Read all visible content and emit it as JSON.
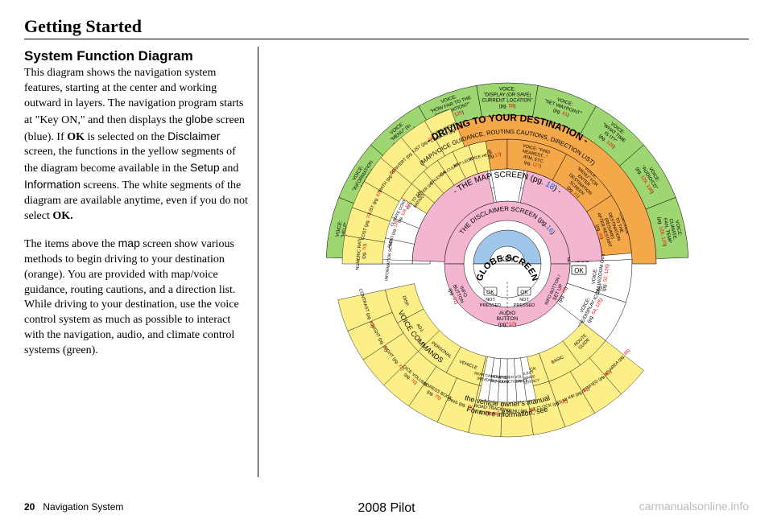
{
  "page": {
    "title": "Getting Started",
    "section_title": "System Function Diagram",
    "footer_page_num": "20",
    "footer_label": "Navigation System",
    "footer_center": "2008  Pilot",
    "footer_right": "carmanualsonline.info"
  },
  "body": {
    "p1_a": "This diagram shows the navigation system features, starting at the center and working outward in layers. The navigation program starts at \"Key ON,\" and then displays the ",
    "p1_globe": "globe",
    "p1_b": " screen (blue). If ",
    "p1_ok": "OK",
    "p1_c": " is selected on the ",
    "p1_disclaimer": "Disclaimer",
    "p1_d": " screen, the functions in the yellow segments of the diagram become available in the ",
    "p1_setup": "Setup",
    "p1_e": " and ",
    "p1_info": "Information",
    "p1_f": " screens. The white segments of the diagram are available anytime, even if you do not select ",
    "p1_ok2": "OK.",
    "p2_a": "The items above the ",
    "p2_map": "map",
    "p2_b": " screen show various methods to begin driving to your destination (orange). You are provided with map/voice guidance, routing cautions, and a direction list. While driving to your destination, use the voice control system as much as possible to interact with the navigation, audio, and climate control systems (green)."
  },
  "diagram": {
    "colors": {
      "green": "#9ed672",
      "orange": "#f5a84a",
      "yellow": "#fcef87",
      "blue": "#9fc5e8",
      "pink": "#f3b5cf",
      "white": "#ffffff",
      "stroke": "#000000",
      "font_green_ring": "#000000"
    },
    "center": {
      "label": "KEY\nON"
    },
    "ring1": {
      "globe": "GLOBE SCREEN",
      "disclaimer": "THE DISCLAIMER SCREEN (pg.16)",
      "map": "- THE MAP SCREEN (pg. 18) -",
      "driving": "- DRIVING TO YOUR DESTINATION -",
      "driving_sub": "(MAP/VOICE GUIDANCE, ROUTING CAUTIONS, DIRECTION LIST)"
    },
    "press_ok": {
      "label": "PRESS",
      "ok": "OK"
    },
    "ok_not_pressed": "OK\nNOT\nPRESSED",
    "info_button": "INFO\nBUTTON\n(pg. 61)",
    "setup_button": "INFO BUTTON /\nSET UP\n(pg. 73)",
    "audio_button": "AUDIO\nBUTTON\n(pg. 10)",
    "voice_commands": "VOICE COMMANDS",
    "manual_note": "For more information, see\nthe vehicle owner's manual",
    "green_outer": [
      "VOICE:\n\"HELP\"\n(pg. 125)",
      "VOICE:\n\"INFORMATION\nSCREEN\"\n(pg. 96)",
      "VOICE:\n\"MENU\" (to\nchange route)\n(pg. 61)",
      "VOICE:\n\"HOW FAR TO THE\nDESTINATION?\"\n(pg. 125)",
      "VOICE:\n\"DISPLAY (OR SAVE)\nCURRENT LOCATION\"\n(pg. 59)",
      "VOICE:\n\"SET WAYPOINT\"\n(pg. 61)",
      "VOICE:\n\"WHAT TIME\nIS IT?\"\n(pg. 126)",
      "VOICE:\n\"AUDIO/CD\"\n(pg. 129, 130)",
      "VOICE:\nCLIMATE,\nFAN, TEMP\n(pg. 128, 129)"
    ],
    "orange_inner": [
      "VOICE:\n\"GO HOME\"\n(pg. 42)",
      "SELECT A\nDESTINATION\nWITH\nJOYSTICK\n(pg. 54)",
      "CALENDAR\nREMINDERS (pg.17)",
      "VOICE: \"FIND\nNEAREST...\"\nATM, ETC.\n(pg. 127)",
      "VOICE:\n\"MENU\" FOR\nENTER\nDESTINATION\nSCREEN\n(pg. 21)",
      "CONTINUE\nTO THE\nDESTINATION\n(RESUME)\nAFTER RESTART\n(pg. 60)"
    ],
    "right_map": [
      "VOICE:\n\"ZOOM IN/ZOOM OUT\"\n(pg. 52, 126)",
      "VOICE:\n\"HIDE/DISPLAY ICONS\"\n(pg. 54, 126)"
    ],
    "yellow_left": [
      "INFORMATION SCREEN (pg. 136)",
      "AUDIO (pg. 129, 130)",
      "CLIMATE CONTROL\n(pg. 128, 129)",
      "NUMERIC RATING\n(pg. 70)",
      "COST (pg. 70)",
      "LIST (pg. 67)",
      "MATH (pg. 69)",
      "CONVERT (pg. 70)",
      "LIST (pg. 69)",
      "NAVI AUDIO\nCLIMATE (pg. 66)",
      "KEY TO ZAGAT\nRATINGS",
      "CALENDAR",
      "CALCULATOR",
      "MAP LEGEND",
      "VOICE HELP",
      "ENTER (pg. 68)"
    ],
    "yellow_right": [
      "ROUTE\nGUIDE",
      "BASIC",
      "CLOCK",
      "COLOR",
      "VEHICLE",
      "PERSONAL",
      "AVOID AREA (pg. 86)",
      "UNVERIFIED (pg. 83)",
      "UNITS MI KM (pg. 91)",
      "ADJUST CLOCK (pg. 92)",
      "MAP MENU (pg. 94)",
      "OFFROAD TRACKING\n(pg. 58, 89)",
      "PINS (pg. 75)",
      "ADDRESS BOOK\n(pg. 75)",
      "VOICE VOLUME\n(pg. 73)",
      "BRIGHT (pg. 72)",
      "DAY/NIGHT (pg. 72)",
      "CONTRAST (pg. 74)",
      "ADJ.",
      "DISP."
    ],
    "white_bottom": [
      "SELECT\nCHANGE\nFREQUENCY",
      "VOL.\nBALANCE",
      "CD\nFUNCTIONS",
      "OTHER\nAUDIO",
      "BRIGHTNESS\nZOOM IN/OUT",
      "REAR CAMERA\n(REVERSE)"
    ]
  }
}
